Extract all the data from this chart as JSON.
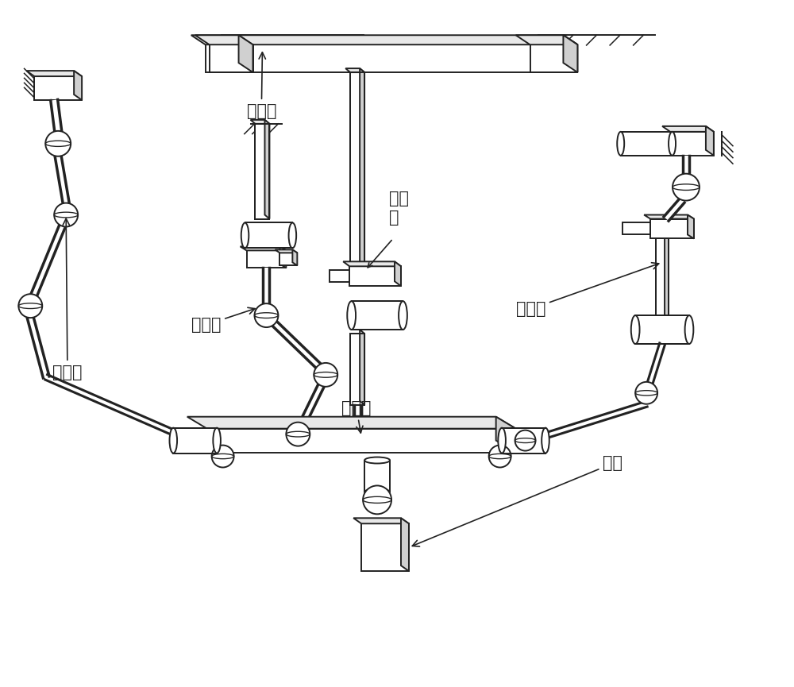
{
  "background_color": "#ffffff",
  "line_color": "#222222",
  "lw": 1.4,
  "fig_width": 10.0,
  "fig_height": 8.65,
  "labels": {
    "ding_ping_tai": "定平台",
    "zhi_lian_yi": "支链一",
    "zhi_lian_er": "支链二",
    "zhi_lian_san": "支链三",
    "zhi_lian_si": [
      "支链",
      "四"
    ],
    "dong_ping_tai": "动平台",
    "mo_duan": "末端"
  }
}
